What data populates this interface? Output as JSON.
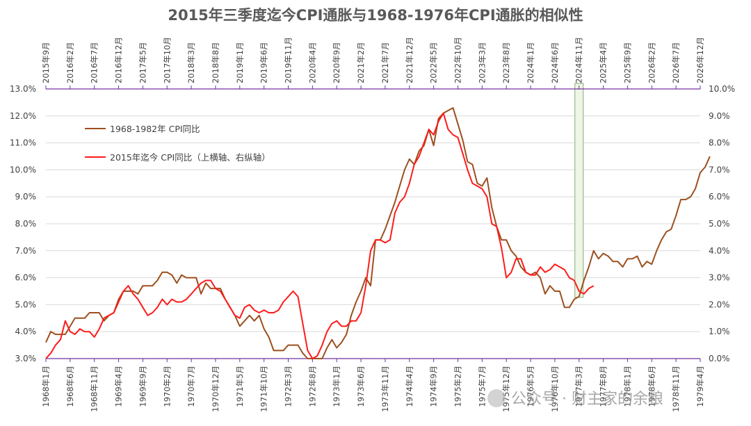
{
  "title": "2015年三季度迄今CPI通胀与1968-1976年CPI通胀的相似性",
  "watermark": "公众号 · 财主家的余粮",
  "chart_data": {
    "type": "line",
    "title": "2015年三季度迄今CPI通胀与1968-1976年CPI通胀的相似性",
    "left_axis": {
      "min": 3.0,
      "max": 13.0,
      "step": 1.0,
      "labels": [
        "3.0%",
        "4.0%",
        "5.0%",
        "6.0%",
        "7.0%",
        "8.0%",
        "9.0%",
        "10.0%",
        "11.0%",
        "12.0%",
        "13.0%"
      ]
    },
    "right_axis": {
      "min": 0.0,
      "max": 10.0,
      "step": 1.0,
      "labels": [
        "0.0%",
        "1.0%",
        "2.0%",
        "3.0%",
        "4.0%",
        "5.0%",
        "6.0%",
        "7.0%",
        "8.0%",
        "9.0%",
        "10.0%"
      ]
    },
    "bottom_axis_labels": [
      "1968年1月",
      "1968年6月",
      "1968年11月",
      "1969年4月",
      "1969年9月",
      "1970年2月",
      "1970年7月",
      "1970年12月",
      "1971年5月",
      "1971年10月",
      "1972年3月",
      "1972年8月",
      "1973年1月",
      "1973年6月",
      "1973年11月",
      "1974年4月",
      "1974年9月",
      "1975年2月",
      "1975年7月",
      "1975年12月",
      "1976年5月",
      "1976年10月",
      "1977年3月",
      "1977年8月",
      "1978年1月",
      "1978年6月",
      "1978年11月",
      "1979年4月"
    ],
    "top_axis_labels": [
      "2015年9月",
      "2016年2月",
      "2016年7月",
      "2016年12月",
      "2017年5月",
      "2017年10月",
      "2018年3月",
      "2018年8月",
      "2019年1月",
      "2019年6月",
      "2019年11月",
      "2020年4月",
      "2020年9月",
      "2021年2月",
      "2021年7月",
      "2021年12月",
      "2022年5月",
      "2022年10月",
      "2023年3月",
      "2023年8月",
      "2024年1月",
      "2024年6月",
      "2024年11月",
      "2025年4月",
      "2025年9月",
      "2026年2月",
      "2026年7月",
      "2026年12月"
    ],
    "legend_position": "left",
    "grid": true,
    "series": [
      {
        "name": "1968-1982年 CPI同比",
        "axis": "left (bottom axis)",
        "color": "#9c4f1e",
        "values": [
          3.6,
          4.0,
          3.9,
          3.9,
          3.9,
          4.2,
          4.5,
          4.5,
          4.5,
          4.7,
          4.7,
          4.7,
          4.4,
          4.6,
          4.7,
          5.2,
          5.5,
          5.5,
          5.5,
          5.4,
          5.7,
          5.7,
          5.7,
          5.9,
          6.2,
          6.2,
          6.1,
          5.8,
          6.1,
          6.0,
          6.0,
          6.0,
          5.4,
          5.8,
          5.6,
          5.6,
          5.6,
          5.2,
          4.9,
          4.6,
          4.2,
          4.4,
          4.6,
          4.4,
          4.6,
          4.1,
          3.8,
          3.3,
          3.3,
          3.3,
          3.5,
          3.5,
          3.5,
          3.2,
          2.9,
          2.7,
          2.9,
          3.0,
          3.4,
          3.7,
          3.4,
          3.6,
          3.9,
          4.6,
          5.1,
          5.5,
          6.0,
          5.7,
          7.4,
          7.4,
          7.8,
          8.3,
          8.8,
          9.4,
          10.0,
          10.4,
          10.2,
          10.7,
          10.9,
          11.5,
          10.9,
          11.9,
          12.1,
          12.2,
          12.3,
          11.7,
          11.1,
          10.3,
          10.2,
          9.5,
          9.4,
          9.7,
          8.6,
          7.9,
          7.4,
          7.4,
          7.0,
          6.8,
          6.4,
          6.2,
          6.1,
          6.2,
          6.0,
          5.4,
          5.7,
          5.5,
          5.5,
          4.9,
          4.9,
          5.2,
          5.3,
          5.9,
          6.4,
          7.0,
          6.7,
          6.9,
          6.8,
          6.6,
          6.6,
          6.4,
          6.7,
          6.7,
          6.8,
          6.4,
          6.6,
          6.5,
          7.0,
          7.4,
          7.7,
          7.8,
          8.3,
          8.9,
          8.9,
          9.0,
          9.3,
          9.9,
          10.1,
          10.5
        ]
      },
      {
        "name": "2015年迄今 CPI同比（上横轴、右纵轴）",
        "axis": "right (top axis)",
        "color": "#ff1a1a",
        "values": [
          0.0,
          0.2,
          0.5,
          0.7,
          1.4,
          1.0,
          0.9,
          1.1,
          1.0,
          1.0,
          0.8,
          1.1,
          1.5,
          1.6,
          1.7,
          2.1,
          2.5,
          2.7,
          2.4,
          2.2,
          1.9,
          1.6,
          1.7,
          1.9,
          2.2,
          2.0,
          2.2,
          2.1,
          2.1,
          2.2,
          2.4,
          2.6,
          2.8,
          2.9,
          2.9,
          2.6,
          2.5,
          2.2,
          1.9,
          1.6,
          1.5,
          1.9,
          2.0,
          1.8,
          1.7,
          1.8,
          1.7,
          1.7,
          1.8,
          2.1,
          2.3,
          2.5,
          2.3,
          1.3,
          0.3,
          0.0,
          0.1,
          0.5,
          1.0,
          1.3,
          1.4,
          1.2,
          1.2,
          1.4,
          1.4,
          1.7,
          2.7,
          4.0,
          4.4,
          4.4,
          4.3,
          4.4,
          5.4,
          5.8,
          6.0,
          6.5,
          7.2,
          7.5,
          8.0,
          8.5,
          8.3,
          8.8,
          9.1,
          8.5,
          8.3,
          8.2,
          7.6,
          7.0,
          6.5,
          6.4,
          6.3,
          6.0,
          5.0,
          4.9,
          4.1,
          3.0,
          3.2,
          3.7,
          3.7,
          3.2,
          3.1,
          3.1,
          3.4,
          3.2,
          3.3,
          3.5,
          3.4,
          3.3,
          3.0,
          2.9,
          2.5,
          2.4,
          2.6,
          2.7
        ]
      }
    ]
  }
}
